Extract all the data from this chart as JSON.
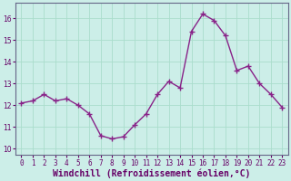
{
  "x": [
    0,
    1,
    2,
    3,
    4,
    5,
    6,
    7,
    8,
    9,
    10,
    11,
    12,
    13,
    14,
    15,
    16,
    17,
    18,
    19,
    20,
    21,
    22,
    23
  ],
  "y": [
    12.1,
    12.2,
    12.5,
    12.2,
    12.3,
    12.0,
    11.6,
    10.6,
    10.45,
    10.55,
    11.1,
    11.6,
    12.5,
    13.1,
    12.8,
    15.4,
    16.2,
    15.9,
    15.2,
    13.6,
    13.8,
    13.0,
    12.5,
    11.9
  ],
  "line_color": "#882288",
  "marker": "+",
  "marker_size": 4,
  "bg_color": "#cceee8",
  "grid_color": "#aaddcc",
  "xlabel": "Windchill (Refroidissement éolien,°C)",
  "xlabel_fontsize": 7,
  "yticks": [
    10,
    11,
    12,
    13,
    14,
    15,
    16
  ],
  "xtick_labels": [
    "0",
    "1",
    "2",
    "3",
    "4",
    "5",
    "6",
    "7",
    "8",
    "9",
    "1011",
    "1213",
    "1415",
    "1617",
    "1819",
    "2021",
    "2223"
  ],
  "ylim": [
    9.7,
    16.7
  ],
  "xlim": [
    -0.5,
    23.5
  ],
  "tick_fontsize": 5.5,
  "line_width": 1.0
}
